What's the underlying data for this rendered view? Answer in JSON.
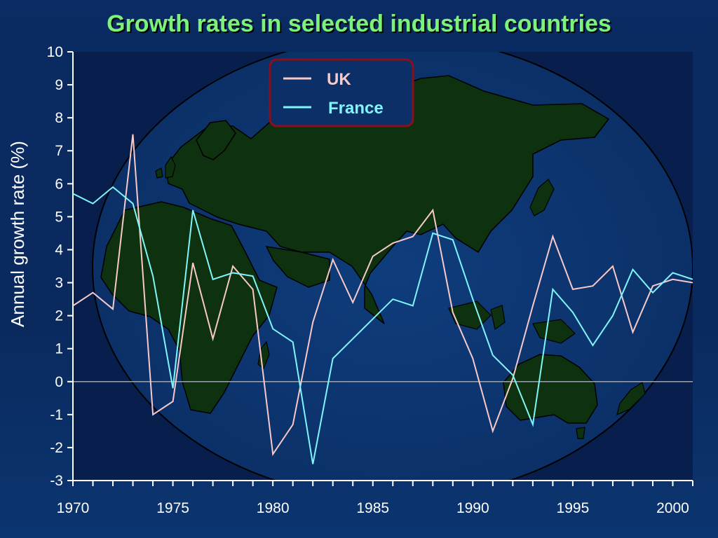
{
  "chart_data": {
    "type": "line",
    "title": "Growth rates in selected industrial countries",
    "ylabel": "Annual growth rate (%)",
    "xlabel": "",
    "xlim": [
      1970,
      2001
    ],
    "ylim": [
      -3,
      10
    ],
    "yticks": [
      10,
      9,
      8,
      7,
      6,
      5,
      4,
      3,
      2,
      1,
      0,
      -1,
      -2,
      -3
    ],
    "xtick_labels": [
      1970,
      1975,
      1980,
      1985,
      1990,
      1995,
      2000
    ],
    "legend_position": "top-center",
    "background": "world map",
    "x": [
      1970,
      1971,
      1972,
      1973,
      1974,
      1975,
      1976,
      1977,
      1978,
      1979,
      1980,
      1981,
      1982,
      1983,
      1984,
      1985,
      1986,
      1987,
      1988,
      1989,
      1990,
      1991,
      1992,
      1993,
      1994,
      1995,
      1996,
      1997,
      1998,
      1999,
      2000,
      2001
    ],
    "series": [
      {
        "name": "UK",
        "color": "#f7c9c9",
        "values": [
          2.3,
          2.7,
          2.2,
          7.5,
          -1.0,
          -0.6,
          3.6,
          1.3,
          3.5,
          2.8,
          -2.2,
          -1.3,
          1.8,
          3.7,
          2.4,
          3.8,
          4.2,
          4.4,
          5.2,
          2.1,
          0.7,
          -1.5,
          0.1,
          2.3,
          4.4,
          2.8,
          2.9,
          3.5,
          1.5,
          2.9,
          3.1,
          3.0
        ]
      },
      {
        "name": "France",
        "color": "#7ff6fb",
        "values": [
          5.7,
          5.4,
          5.9,
          5.4,
          3.2,
          -0.2,
          5.2,
          3.1,
          3.3,
          3.2,
          1.6,
          1.2,
          -2.5,
          0.7,
          1.3,
          1.9,
          2.5,
          2.3,
          4.5,
          4.3,
          2.5,
          0.8,
          0.2,
          -1.3,
          2.8,
          2.1,
          1.1,
          2.0,
          3.4,
          2.7,
          3.3,
          3.1
        ]
      }
    ]
  }
}
